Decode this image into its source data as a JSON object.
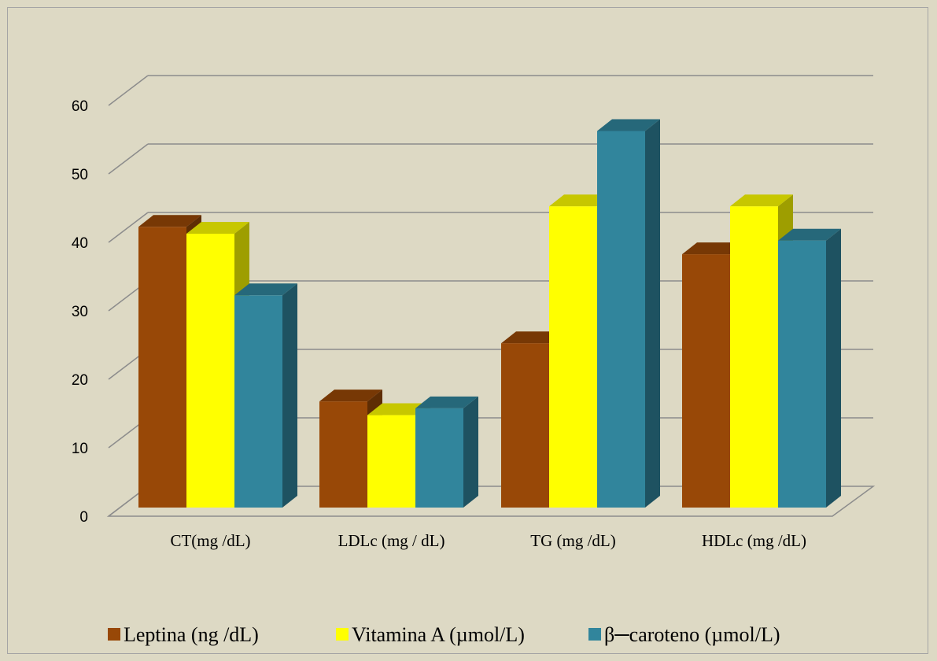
{
  "chart_data": {
    "type": "bar",
    "style": "3d-clustered-column",
    "categories": [
      "CT(mg /dL)",
      "LDLc (mg / dL)",
      "TG (mg /dL)",
      "HDLc (mg /dL)"
    ],
    "series": [
      {
        "name": "Leptina (ng /dL)",
        "values": [
          41,
          15.5,
          24,
          37
        ],
        "color": "#984807"
      },
      {
        "name": "Vitamina A (µmol/L)",
        "values": [
          40,
          13.5,
          44,
          44
        ],
        "color": "#ffff00"
      },
      {
        "name": "β─caroteno (µmol/L)",
        "values": [
          31,
          14.5,
          55,
          39
        ],
        "color": "#31859c"
      }
    ],
    "yticks": [
      0,
      10,
      20,
      30,
      40,
      50,
      60
    ],
    "ylim": [
      0,
      60
    ],
    "grid": true,
    "legend_position": "bottom",
    "background": "#ddd9c4",
    "gridline_color": "#8c8c8c"
  }
}
